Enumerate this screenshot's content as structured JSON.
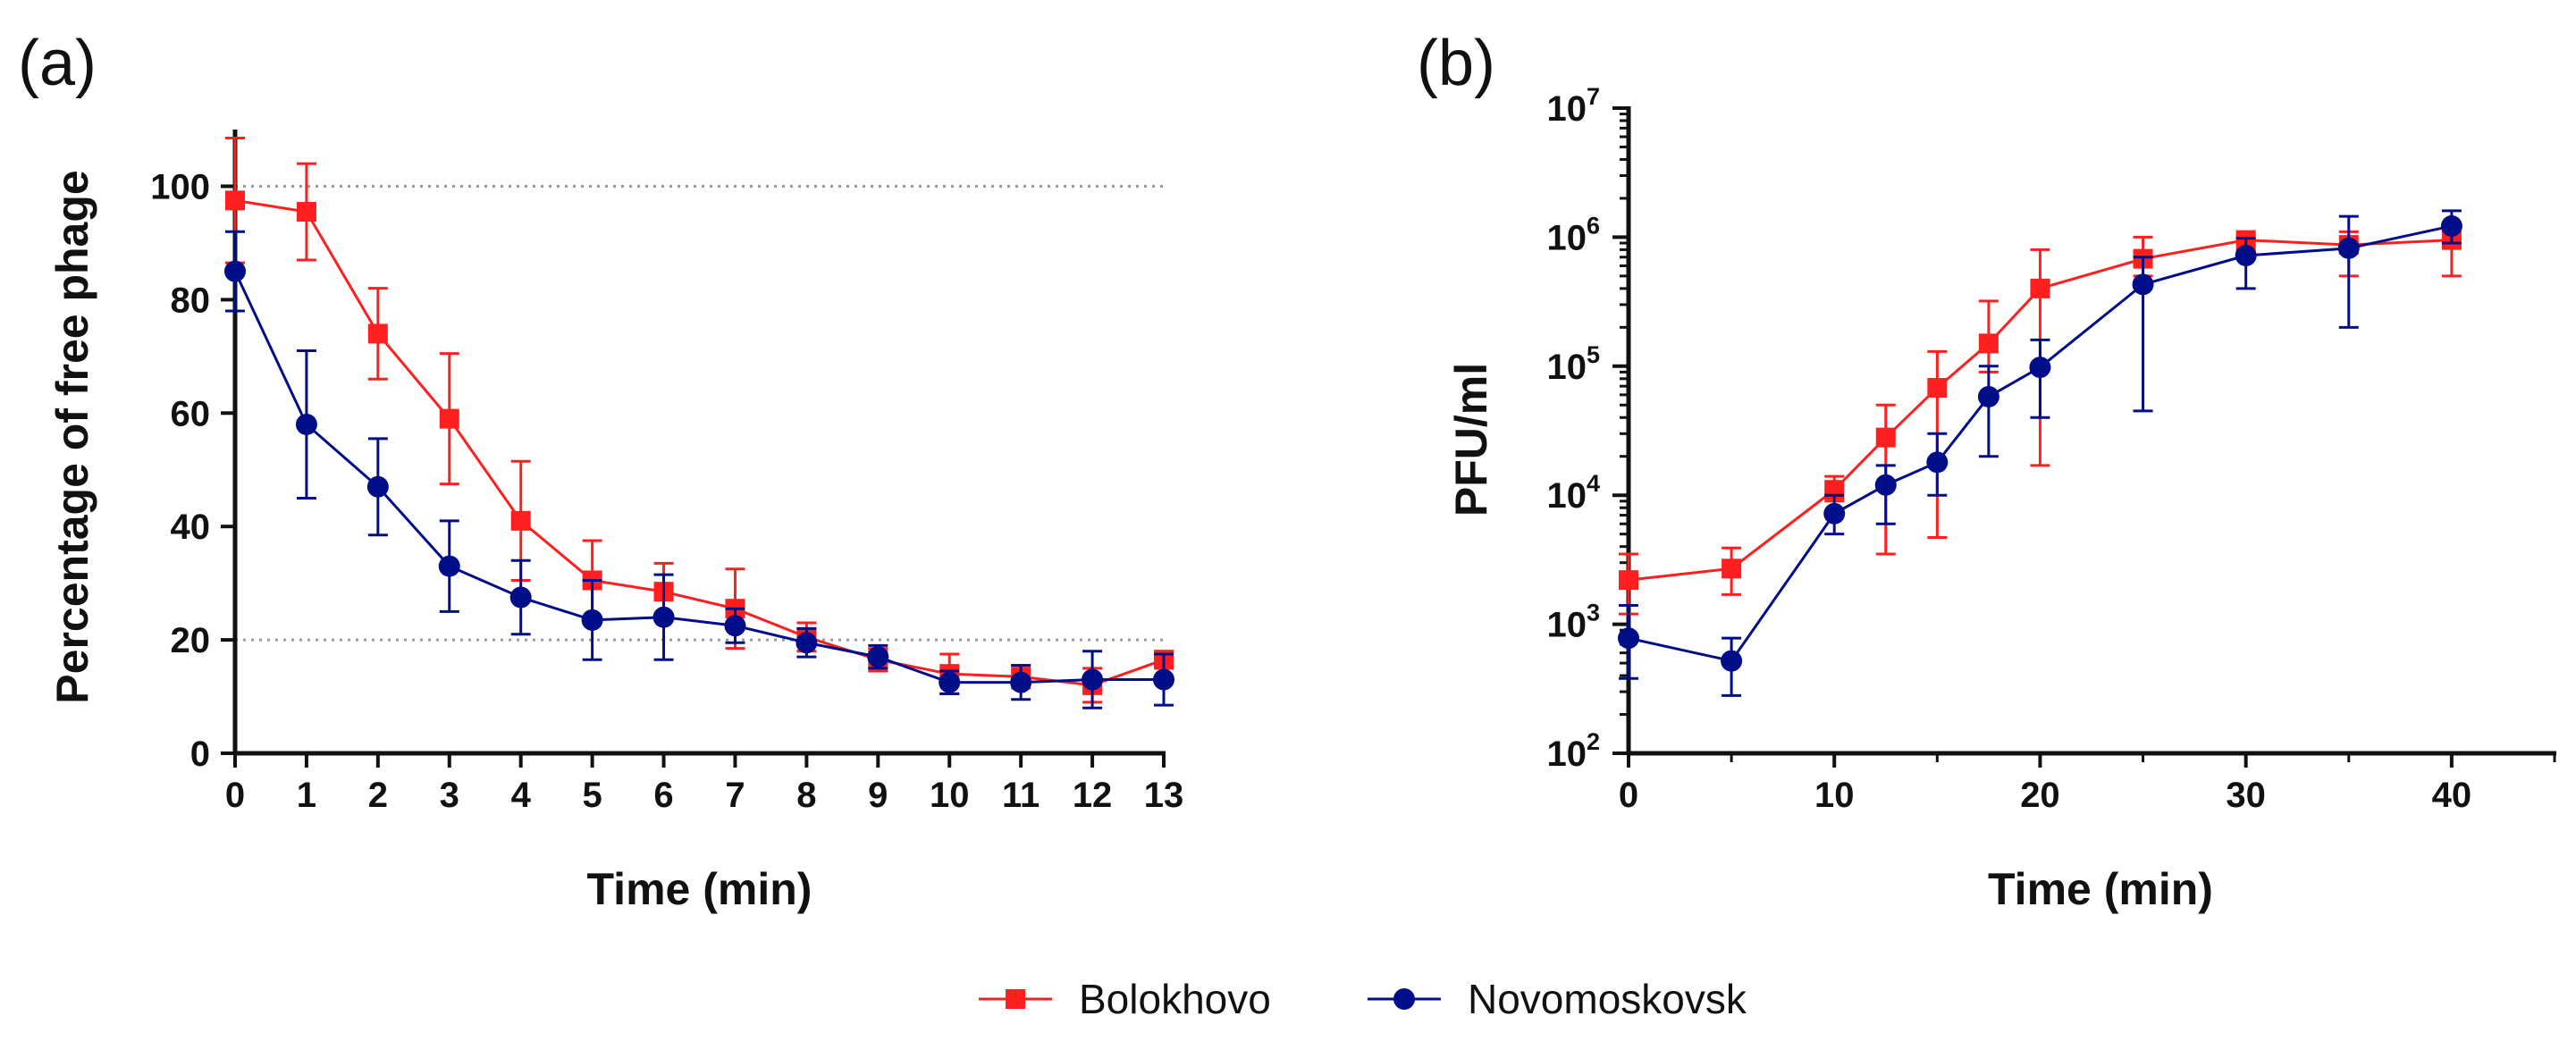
{
  "panel_a_label": "(a)",
  "panel_b_label": "(b)",
  "colors": {
    "bolokhovo": "#ff1f1f",
    "novomoskovsk": "#000e8a",
    "ref": "#9a9a9a",
    "axis": "#111111"
  },
  "legend": [
    {
      "name": "Bolokhovo",
      "marker": "square"
    },
    {
      "name": "Novomoskovsk",
      "marker": "circle"
    }
  ],
  "chart_data": [
    {
      "id": "a",
      "type": "line",
      "xlabel": "Time (min)",
      "ylabel": "Percentage of free phage",
      "xlim": [
        0,
        13
      ],
      "ylim": [
        0,
        110
      ],
      "xticks": [
        0,
        1,
        2,
        3,
        4,
        5,
        6,
        7,
        8,
        9,
        10,
        11,
        12,
        13
      ],
      "yticks": [
        0,
        20,
        40,
        60,
        80,
        100
      ],
      "reference_lines": [
        100,
        20
      ],
      "x": [
        0,
        1,
        2,
        3,
        4,
        5,
        6,
        7,
        8,
        9,
        10,
        11,
        12,
        13
      ],
      "series": [
        {
          "name": "Bolokhovo",
          "marker": "square",
          "values": [
            97.5,
            95.5,
            74,
            59,
            41,
            30.5,
            28.5,
            25.5,
            20.5,
            16.5,
            14,
            13.5,
            12,
            16.5
          ],
          "err": [
            11,
            8.5,
            8,
            11.5,
            10.5,
            7,
            5,
            7,
            2.5,
            2,
            3.5,
            2,
            3,
            1.5
          ]
        },
        {
          "name": "Novomoskovsk",
          "marker": "circle",
          "values": [
            85,
            58,
            47,
            33,
            27.5,
            23.5,
            24,
            22.5,
            19.5,
            17,
            12.5,
            12.5,
            13,
            13
          ],
          "err": [
            7,
            13,
            8.5,
            8,
            6.5,
            7,
            7.5,
            3,
            2.5,
            2,
            2,
            3,
            5,
            4.5
          ]
        }
      ]
    },
    {
      "id": "b",
      "type": "line",
      "yscale": "log",
      "xlabel": "Time (min)",
      "ylabel": "PFU/ml",
      "xlim": [
        0,
        45
      ],
      "ylim_exponent": [
        2,
        7
      ],
      "xticks": [
        0,
        10,
        20,
        30,
        40
      ],
      "ytick_base": "10",
      "ytick_exponents": [
        "2",
        "3",
        "4",
        "5",
        "6",
        "7"
      ],
      "series": [
        {
          "name": "Bolokhovo",
          "marker": "square",
          "x": [
            0,
            5,
            10,
            12.5,
            15,
            17.5,
            20,
            25,
            30,
            35,
            40
          ],
          "values": [
            2200,
            2700,
            11000,
            28000,
            68000,
            150000,
            400000,
            680000,
            950000,
            870000,
            950000
          ],
          "err_low": [
            1200,
            1700,
            9000,
            3500,
            4700,
            90000,
            17000,
            500000,
            800000,
            500000,
            500000
          ],
          "err_high": [
            3500,
            3900,
            14000,
            50000,
            130000,
            320000,
            800000,
            1000000,
            1050000,
            1100000,
            1200000
          ]
        },
        {
          "name": "Novomoskovsk",
          "marker": "circle",
          "x": [
            0,
            5,
            10,
            12.5,
            15,
            17.5,
            20,
            25,
            30,
            35,
            40
          ],
          "values": [
            780,
            520,
            7200,
            12000,
            18000,
            58000,
            98000,
            430000,
            720000,
            820000,
            1220000
          ],
          "err_low": [
            380,
            280,
            5000,
            6000,
            10000,
            20000,
            40000,
            45000,
            400000,
            200000,
            900000
          ],
          "err_high": [
            1400,
            780,
            10000,
            17000,
            30000,
            100000,
            160000,
            700000,
            980000,
            1450000,
            1600000
          ]
        }
      ]
    }
  ]
}
